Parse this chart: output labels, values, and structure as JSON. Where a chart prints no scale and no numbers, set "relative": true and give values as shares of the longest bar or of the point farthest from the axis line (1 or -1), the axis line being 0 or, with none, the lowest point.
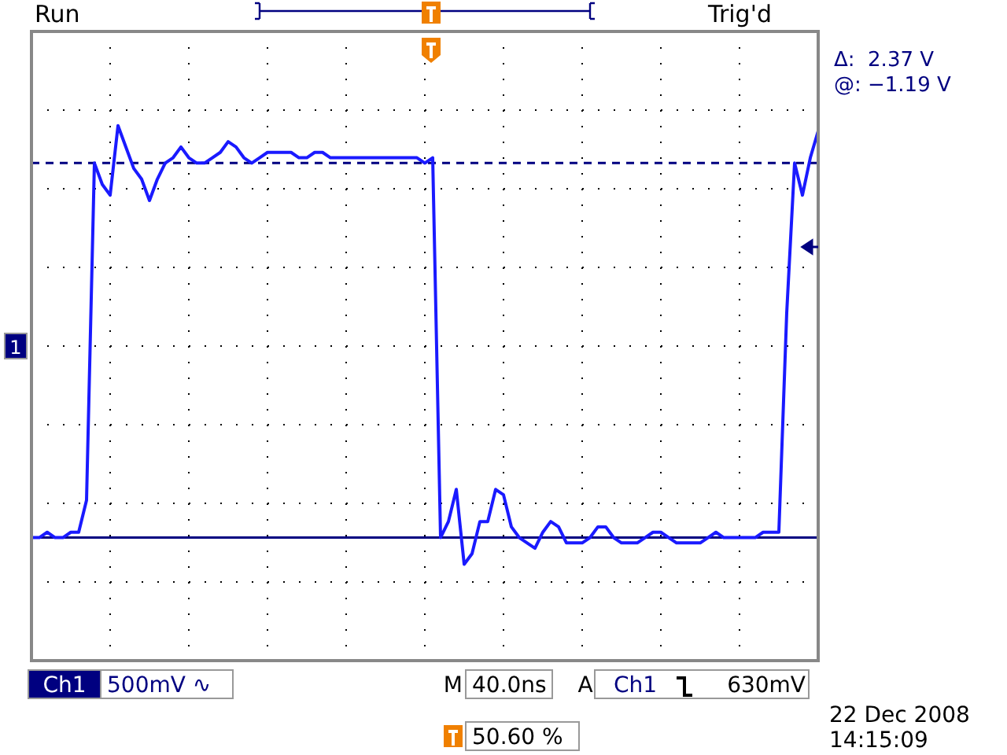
{
  "chart_data": {
    "type": "line",
    "relative": true,
    "grid": true,
    "categories": [
      null,
      null,
      null,
      null,
      null,
      null,
      null,
      null,
      null,
      null,
      null,
      null,
      null,
      null,
      null,
      null,
      null,
      null,
      null,
      null,
      null,
      null,
      null,
      null,
      null,
      null,
      null,
      null,
      null,
      null,
      null,
      null,
      null,
      null,
      null,
      null,
      null,
      null,
      null,
      null,
      null,
      null,
      null,
      null,
      null,
      null,
      null,
      null,
      null,
      null,
      null,
      null,
      null,
      null,
      null,
      null,
      null,
      null,
      null,
      null,
      null,
      null,
      null,
      null,
      null,
      null,
      null,
      null,
      null,
      null,
      null,
      null,
      null,
      null,
      null,
      null,
      null,
      null,
      null,
      null,
      null,
      null,
      null,
      null,
      null,
      null,
      null,
      null,
      null,
      null,
      null,
      null,
      null,
      null,
      null,
      null,
      null,
      null,
      null,
      null,
      null
    ],
    "values": [
      0.23,
      0.23,
      0.24,
      0.23,
      0.23,
      0.24,
      0.24,
      0.3,
      0.93,
      0.89,
      0.87,
      1,
      0.96,
      0.92,
      0.9,
      0.86,
      0.9,
      0.93,
      0.94,
      0.96,
      0.94,
      0.93,
      0.93,
      0.94,
      0.95,
      0.97,
      0.96,
      0.94,
      0.93,
      0.94,
      0.95,
      0.95,
      0.95,
      0.95,
      0.94,
      0.94,
      0.95,
      0.95,
      0.94,
      0.94,
      0.94,
      0.94,
      0.94,
      0.94,
      0.94,
      0.94,
      0.94,
      0.94,
      0.94,
      0.94,
      0.93,
      0.94,
      0.23,
      0.26,
      0.32,
      0.18,
      0.2,
      0.26,
      0.26,
      0.32,
      0.31,
      0.25,
      0.23,
      0.22,
      0.21,
      0.24,
      0.26,
      0.25,
      0.22,
      0.22,
      0.22,
      0.23,
      0.25,
      0.25,
      0.23,
      0.22,
      0.22,
      0.22,
      0.23,
      0.24,
      0.24,
      0.23,
      0.22,
      0.22,
      0.22,
      0.22,
      0.23,
      0.24,
      0.23,
      0.23,
      0.23,
      0.23,
      0.23,
      0.24,
      0.24,
      0.24,
      0.65,
      0.93,
      0.87,
      0.94,
      0.99
    ],
    "color": "#1a1aff",
    "ref_lines": [
      {
        "axis": "y",
        "value": 0.93,
        "color": "#000080",
        "line_style": "dashed"
      },
      {
        "axis": "y",
        "value": 0.23,
        "color": "#000080",
        "line_style": "solid"
      }
    ],
    "annotations": [
      "Run",
      "Trig'd",
      "Δ:  2.37 V",
      "@: −1.19 V",
      "1",
      "Ch1",
      "500mV ∿",
      "M",
      "40.0ns",
      "A",
      "Ch1",
      "630mV",
      "50.60 %",
      "22 Dec 2008",
      "14:15:09"
    ]
  }
}
